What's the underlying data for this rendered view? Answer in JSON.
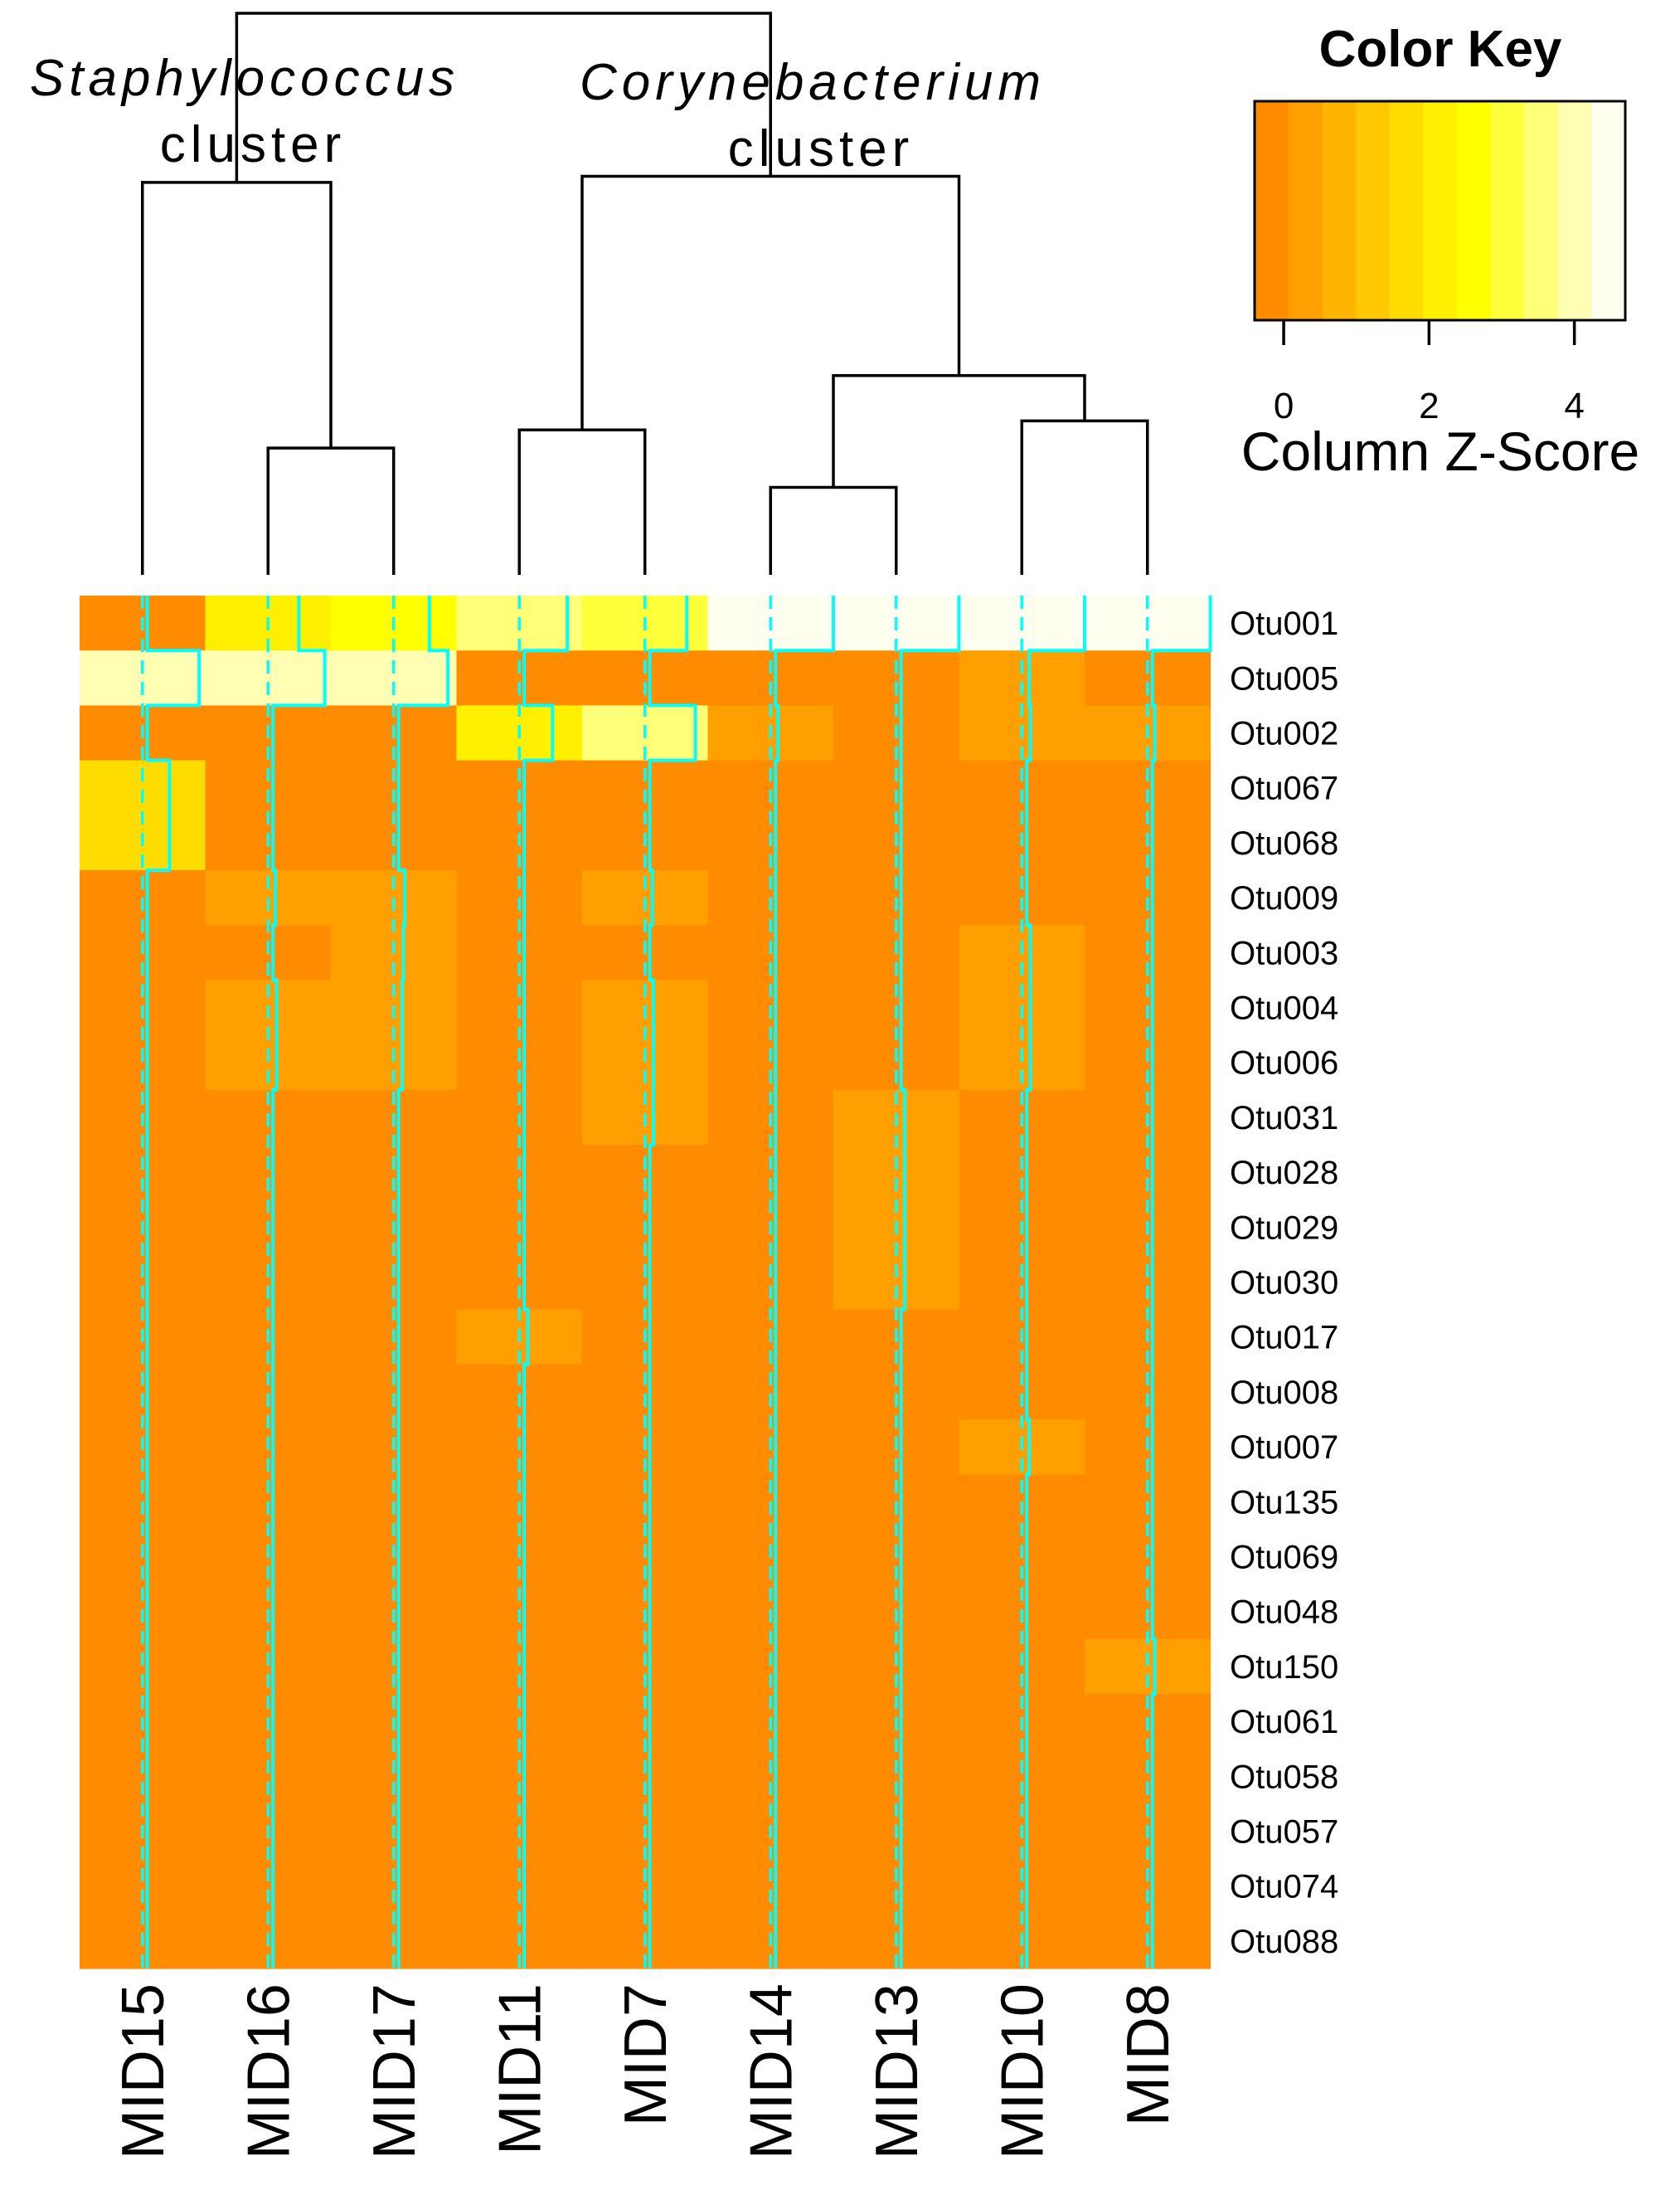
{
  "chart_data": {
    "type": "heatmap",
    "title": "",
    "cluster_labels": [
      {
        "italic": "Staphylococcus",
        "plain": "cluster"
      },
      {
        "italic": "Corynebacterium",
        "plain": "cluster"
      }
    ],
    "columns": [
      "MID15",
      "MID16",
      "MID17",
      "MID11",
      "MID7",
      "MID14",
      "MID13",
      "MID10",
      "MID8"
    ],
    "rows": [
      "Otu001",
      "Otu005",
      "Otu002",
      "Otu067",
      "Otu068",
      "Otu009",
      "Otu003",
      "Otu004",
      "Otu006",
      "Otu031",
      "Otu028",
      "Otu029",
      "Otu030",
      "Otu017",
      "Otu008",
      "Otu007",
      "Otu135",
      "Otu069",
      "Otu048",
      "Otu150",
      "Otu061",
      "Otu058",
      "Otu057",
      "Otu074",
      "Otu088"
    ],
    "values": [
      [
        0.0,
        2.1,
        2.5,
        3.5,
        3.0,
        4.7,
        4.7,
        4.7,
        4.7
      ],
      [
        4.2,
        4.2,
        4.0,
        0.0,
        0.0,
        0.0,
        0.0,
        0.2,
        0.0
      ],
      [
        0.0,
        0.0,
        0.0,
        2.3,
        3.7,
        0.2,
        0.0,
        0.3,
        0.2
      ],
      [
        1.8,
        0.0,
        0.0,
        0.0,
        0.0,
        0.0,
        0.0,
        0.0,
        0.0
      ],
      [
        1.8,
        0.0,
        0.0,
        0.0,
        0.0,
        0.0,
        0.0,
        0.0,
        0.0
      ],
      [
        0.0,
        0.2,
        0.5,
        0.0,
        0.2,
        0.0,
        0.0,
        0.0,
        0.0
      ],
      [
        0.0,
        0.0,
        0.4,
        0.0,
        0.0,
        0.0,
        0.0,
        0.3,
        0.0
      ],
      [
        0.0,
        0.3,
        0.3,
        0.0,
        0.3,
        0.0,
        0.0,
        0.3,
        0.0
      ],
      [
        0.0,
        0.3,
        0.3,
        0.0,
        0.3,
        0.0,
        0.0,
        0.3,
        0.0
      ],
      [
        0.0,
        0.0,
        0.0,
        0.0,
        0.3,
        0.0,
        0.3,
        0.0,
        0.0
      ],
      [
        0.0,
        0.0,
        0.0,
        0.0,
        0.0,
        0.0,
        0.3,
        0.0,
        0.0
      ],
      [
        0.0,
        0.0,
        0.0,
        0.0,
        0.0,
        0.0,
        0.3,
        0.0,
        0.0
      ],
      [
        0.0,
        0.0,
        0.0,
        0.0,
        0.0,
        0.0,
        0.3,
        0.0,
        0.0
      ],
      [
        0.0,
        0.0,
        0.0,
        0.3,
        0.0,
        0.0,
        0.0,
        0.0,
        0.0
      ],
      [
        0.0,
        0.0,
        0.0,
        0.0,
        0.0,
        0.0,
        0.0,
        0.0,
        0.0
      ],
      [
        0.0,
        0.0,
        0.0,
        0.0,
        0.0,
        0.0,
        0.0,
        0.2,
        0.0
      ],
      [
        0.0,
        0.0,
        0.0,
        0.0,
        0.0,
        0.0,
        0.0,
        0.0,
        0.0
      ],
      [
        0.0,
        0.0,
        0.0,
        0.0,
        0.0,
        0.0,
        0.0,
        0.0,
        0.0
      ],
      [
        0.0,
        0.0,
        0.0,
        0.0,
        0.0,
        0.0,
        0.0,
        0.0,
        0.0
      ],
      [
        0.0,
        0.0,
        0.0,
        0.0,
        0.0,
        0.0,
        0.0,
        0.0,
        0.2
      ],
      [
        0.0,
        0.0,
        0.0,
        0.0,
        0.0,
        0.0,
        0.0,
        0.0,
        0.0
      ],
      [
        0.0,
        0.0,
        0.0,
        0.0,
        0.0,
        0.0,
        0.0,
        0.0,
        0.0
      ],
      [
        0.0,
        0.0,
        0.0,
        0.0,
        0.0,
        0.0,
        0.0,
        0.0,
        0.0
      ],
      [
        0.0,
        0.0,
        0.0,
        0.0,
        0.0,
        0.0,
        0.0,
        0.0,
        0.0
      ],
      [
        0.0,
        0.0,
        0.0,
        0.0,
        0.0,
        0.0,
        0.0,
        0.0,
        0.0
      ]
    ],
    "dendrogram": {
      "merges": [
        {
          "left": "MID16",
          "right": "MID17",
          "height": 2.1
        },
        {
          "left": "MID15",
          "right": [
            "MID16",
            "MID17"
          ],
          "height": 6.5
        },
        {
          "left": "MID11",
          "right": "MID7",
          "height": 2.4
        },
        {
          "left": "MID14",
          "right": "MID13",
          "height": 1.45
        },
        {
          "left": "MID10",
          "right": "MID8",
          "height": 2.55
        },
        {
          "left": [
            "MID14",
            "MID13"
          ],
          "right": [
            "MID10",
            "MID8"
          ],
          "height": 3.3
        },
        {
          "left": [
            "MID11",
            "MID7"
          ],
          "right": [
            "MID14",
            "MID13",
            "MID10",
            "MID8"
          ],
          "height": 6.6
        },
        {
          "left": [
            "MID15",
            "MID16",
            "MID17"
          ],
          "right": [
            "MID11",
            "MID7",
            "MID14",
            "MID13",
            "MID10",
            "MID8"
          ],
          "height": 9.3
        }
      ]
    },
    "color_key": {
      "title": "Color Key",
      "xlabel": "Column Z-Score",
      "ticks": [
        0,
        2,
        4
      ],
      "range": [
        -0.4,
        4.7
      ],
      "colors": [
        "#ff8c00",
        "#ffa000",
        "#ffb400",
        "#ffc800",
        "#ffdc00",
        "#fff000",
        "#ffff00",
        "#ffff3c",
        "#ffff78",
        "#ffffb4",
        "#fffff0"
      ]
    },
    "trace_color": "#00ffff",
    "dendrogram_color": "#000000"
  }
}
